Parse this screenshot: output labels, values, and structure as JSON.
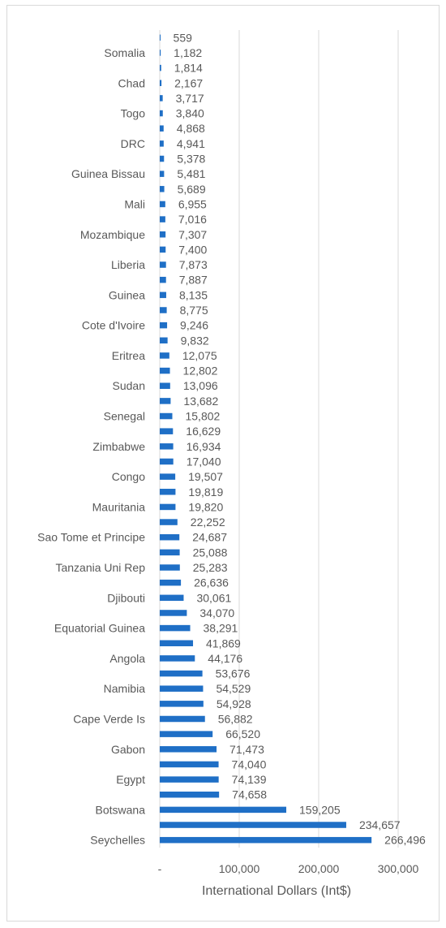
{
  "colors": {
    "bar": "#1f6fc6",
    "grid": "#d9d9d9",
    "text": "#595959"
  },
  "chart_data": {
    "type": "bar",
    "orientation": "horizontal",
    "title": "",
    "xlabel": "International Dollars (Int$)",
    "ylabel": "",
    "xlim": [
      0,
      300000
    ],
    "xticks": [
      0,
      100000,
      200000,
      300000
    ],
    "xtick_labels": [
      "-",
      "100,000",
      "200,000",
      "300,000"
    ],
    "grid": "vertical",
    "categories": [
      "",
      "Somalia",
      "",
      "Chad",
      "",
      "Togo",
      "",
      "DRC",
      "",
      "Guinea Bissau",
      "",
      "Mali",
      "",
      "Mozambique",
      "",
      "Liberia",
      "",
      "Guinea",
      "",
      "Cote d'Ivoire",
      "",
      "Eritrea",
      "",
      "Sudan",
      "",
      "Senegal",
      "",
      "Zimbabwe",
      "",
      "Congo",
      "",
      "Mauritania",
      "",
      "Sao Tome et Principe",
      "",
      "Tanzania Uni Rep",
      "",
      "Djibouti",
      "",
      "Equatorial Guinea",
      "",
      "Angola",
      "",
      "Namibia",
      "",
      "Cape Verde Is",
      "",
      "Gabon",
      "",
      "Egypt",
      "",
      "Botswana",
      "",
      "Seychelles"
    ],
    "values": [
      559,
      1182,
      1814,
      2167,
      3717,
      3840,
      4868,
      4941,
      5378,
      5481,
      5689,
      6955,
      7016,
      7307,
      7400,
      7873,
      7887,
      8135,
      8775,
      9246,
      9832,
      12075,
      12802,
      13096,
      13682,
      15802,
      16629,
      16934,
      17040,
      19507,
      19819,
      19820,
      22252,
      24687,
      25088,
      25283,
      26636,
      30061,
      34070,
      38291,
      41869,
      44176,
      53676,
      54529,
      54928,
      56882,
      66520,
      71473,
      74040,
      74139,
      74658,
      159205,
      234657,
      266496
    ],
    "value_labels": [
      "559",
      "1,182",
      "1,814",
      "2,167",
      "3,717",
      "3,840",
      "4,868",
      "4,941",
      "5,378",
      "5,481",
      "5,689",
      "6,955",
      "7,016",
      "7,307",
      "7,400",
      "7,873",
      "7,887",
      "8,135",
      "8,775",
      "9,246",
      "9,832",
      "12,075",
      "12,802",
      "13,096",
      "13,682",
      "15,802",
      "16,629",
      "16,934",
      "17,040",
      "19,507",
      "19,819",
      "19,820",
      "22,252",
      "24,687",
      "25,088",
      "25,283",
      "26,636",
      "30,061",
      "34,070",
      "38,291",
      "41,869",
      "44,176",
      "53,676",
      "54,529",
      "54,928",
      "56,882",
      "66,520",
      "71,473",
      "74,040",
      "74,139",
      "74,658",
      "159,205",
      "234,657",
      "266,496"
    ]
  }
}
